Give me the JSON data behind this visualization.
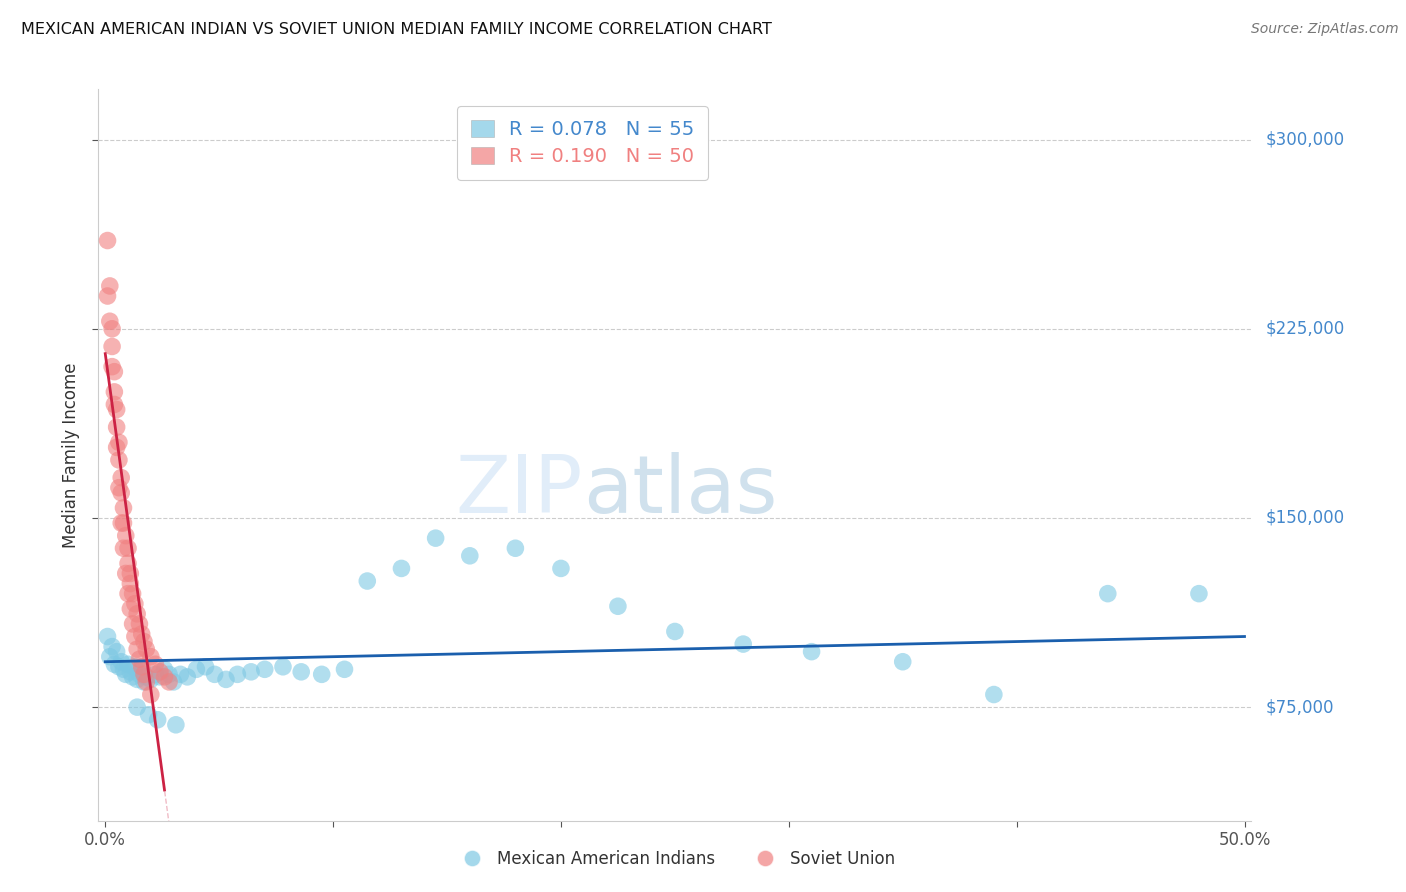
{
  "title": "MEXICAN AMERICAN INDIAN VS SOVIET UNION MEDIAN FAMILY INCOME CORRELATION CHART",
  "source": "Source: ZipAtlas.com",
  "ylabel": "Median Family Income",
  "watermark_zip": "ZIP",
  "watermark_atlas": "atlas",
  "xlim": [
    -0.003,
    0.503
  ],
  "ylim": [
    30000,
    320000
  ],
  "yticks": [
    75000,
    150000,
    225000,
    300000
  ],
  "ytick_labels": [
    "$75,000",
    "$150,000",
    "$225,000",
    "$300,000"
  ],
  "xtick_positions": [
    0.0,
    0.1,
    0.2,
    0.3,
    0.4,
    0.5
  ],
  "xtick_labels": [
    "0.0%",
    "",
    "",
    "",
    "",
    "50.0%"
  ],
  "blue_color": "#7EC8E3",
  "pink_color": "#F08080",
  "trend_blue_color": "#1A5FAD",
  "trend_pink_color": "#CC2244",
  "trend_pink_dash_color": "#DDAAAA",
  "legend_blue_R": "0.078",
  "legend_blue_N": "55",
  "legend_pink_R": "0.190",
  "legend_pink_N": "50",
  "blue_label": "Mexican American Indians",
  "pink_label": "Soviet Union",
  "blue_scatter_x": [
    0.001,
    0.002,
    0.003,
    0.004,
    0.005,
    0.006,
    0.007,
    0.008,
    0.009,
    0.01,
    0.011,
    0.012,
    0.013,
    0.014,
    0.015,
    0.016,
    0.017,
    0.018,
    0.02,
    0.022,
    0.024,
    0.026,
    0.028,
    0.03,
    0.033,
    0.036,
    0.04,
    0.044,
    0.048,
    0.053,
    0.058,
    0.064,
    0.07,
    0.078,
    0.086,
    0.095,
    0.105,
    0.115,
    0.13,
    0.145,
    0.16,
    0.18,
    0.2,
    0.225,
    0.25,
    0.28,
    0.31,
    0.35,
    0.39,
    0.44,
    0.014,
    0.019,
    0.023,
    0.031,
    0.48
  ],
  "blue_scatter_y": [
    103000,
    95000,
    99000,
    92000,
    97000,
    91000,
    93000,
    90000,
    88000,
    92000,
    89000,
    87000,
    91000,
    86000,
    88000,
    90000,
    85000,
    87000,
    86000,
    88000,
    87000,
    90000,
    88000,
    85000,
    88000,
    87000,
    90000,
    91000,
    88000,
    86000,
    88000,
    89000,
    90000,
    91000,
    89000,
    88000,
    90000,
    125000,
    130000,
    142000,
    135000,
    138000,
    130000,
    115000,
    105000,
    100000,
    97000,
    93000,
    80000,
    120000,
    75000,
    72000,
    70000,
    68000,
    120000
  ],
  "pink_scatter_x": [
    0.001,
    0.001,
    0.002,
    0.002,
    0.003,
    0.003,
    0.004,
    0.004,
    0.005,
    0.005,
    0.006,
    0.006,
    0.007,
    0.007,
    0.008,
    0.008,
    0.009,
    0.01,
    0.01,
    0.011,
    0.011,
    0.012,
    0.013,
    0.014,
    0.015,
    0.016,
    0.017,
    0.018,
    0.02,
    0.022,
    0.024,
    0.026,
    0.028,
    0.003,
    0.004,
    0.005,
    0.006,
    0.007,
    0.008,
    0.009,
    0.01,
    0.011,
    0.012,
    0.013,
    0.014,
    0.015,
    0.016,
    0.017,
    0.018,
    0.02
  ],
  "pink_scatter_y": [
    260000,
    238000,
    242000,
    228000,
    225000,
    218000,
    208000,
    200000,
    193000,
    186000,
    180000,
    173000,
    166000,
    160000,
    154000,
    148000,
    143000,
    138000,
    132000,
    128000,
    124000,
    120000,
    116000,
    112000,
    108000,
    104000,
    101000,
    98000,
    95000,
    92000,
    89000,
    87000,
    85000,
    210000,
    195000,
    178000,
    162000,
    148000,
    138000,
    128000,
    120000,
    114000,
    108000,
    103000,
    98000,
    94000,
    91000,
    88000,
    85000,
    80000
  ],
  "background_color": "#FFFFFF",
  "grid_color": "#CCCCCC",
  "right_label_color": "#4488CC",
  "pink_text_color": "#F08080",
  "blue_text_color": "#4488CC"
}
